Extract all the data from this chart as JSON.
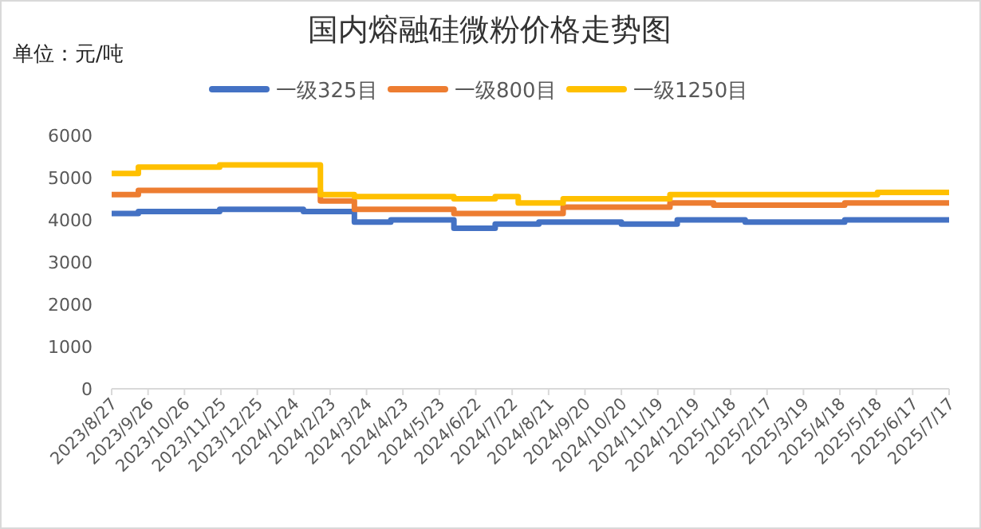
{
  "chart_data": {
    "type": "step",
    "title": "国内熔融硅微粉价格走势图",
    "annotations": [
      "单位：元/吨"
    ],
    "legend": "top",
    "xlim": [
      "2023-08-27",
      "2025-07-17"
    ],
    "xticks": [
      {
        "value": "2023-08-27",
        "label": "2023/8/27"
      },
      {
        "value": "2023-09-26",
        "label": "2023/9/26"
      },
      {
        "value": "2023-10-26",
        "label": "2023/10/26"
      },
      {
        "value": "2023-11-25",
        "label": "2023/11/25"
      },
      {
        "value": "2023-12-25",
        "label": "2023/12/25"
      },
      {
        "value": "2024-01-24",
        "label": "2024/1/24"
      },
      {
        "value": "2024-02-23",
        "label": "2024/2/23"
      },
      {
        "value": "2024-03-24",
        "label": "2024/3/24"
      },
      {
        "value": "2024-04-23",
        "label": "2024/4/23"
      },
      {
        "value": "2024-05-23",
        "label": "2024/5/23"
      },
      {
        "value": "2024-06-22",
        "label": "2024/6/22"
      },
      {
        "value": "2024-07-22",
        "label": "2024/7/22"
      },
      {
        "value": "2024-08-21",
        "label": "2024/8/21"
      },
      {
        "value": "2024-09-20",
        "label": "2024/9/20"
      },
      {
        "value": "2024-10-20",
        "label": "2024/10/20"
      },
      {
        "value": "2024-11-19",
        "label": "2024/11/19"
      },
      {
        "value": "2024-12-19",
        "label": "2024/12/19"
      },
      {
        "value": "2025-01-18",
        "label": "2025/1/18"
      },
      {
        "value": "2025-02-17",
        "label": "2025/2/17"
      },
      {
        "value": "2025-03-19",
        "label": "2025/3/19"
      },
      {
        "value": "2025-04-18",
        "label": "2025/4/18"
      },
      {
        "value": "2025-05-18",
        "label": "2025/5/18"
      },
      {
        "value": "2025-06-17",
        "label": "2025/6/17"
      },
      {
        "value": "2025-07-17",
        "label": "2025/7/17"
      }
    ],
    "ylim": [
      0,
      6000
    ],
    "yticks": [
      0,
      1000,
      2000,
      3000,
      4000,
      5000,
      6000
    ],
    "series": [
      {
        "name": "一级325目",
        "color": "#4472c4",
        "x": [
          "2023-08-27",
          "2023-09-18",
          "2023-11-24",
          "2024-02-01",
          "2024-03-14",
          "2024-04-13",
          "2024-06-04",
          "2024-07-08",
          "2024-08-13",
          "2024-10-20",
          "2024-12-05",
          "2025-01-30",
          "2025-04-22",
          "2025-07-17"
        ],
        "values": [
          4150,
          4200,
          4250,
          4200,
          3950,
          4000,
          3800,
          3900,
          3950,
          3900,
          4000,
          3950,
          4000,
          4000
        ]
      },
      {
        "name": "一级800目",
        "color": "#ed7d31",
        "x": [
          "2023-08-27",
          "2023-09-18",
          "2024-02-15",
          "2024-03-14",
          "2024-06-04",
          "2024-09-02",
          "2024-11-29",
          "2025-01-04",
          "2025-04-22",
          "2025-07-17"
        ],
        "values": [
          4600,
          4700,
          4450,
          4250,
          4150,
          4300,
          4400,
          4350,
          4400,
          4400
        ]
      },
      {
        "name": "一级1250目",
        "color": "#ffc000",
        "x": [
          "2023-08-27",
          "2023-09-18",
          "2023-11-24",
          "2024-02-15",
          "2024-03-14",
          "2024-06-04",
          "2024-07-08",
          "2024-07-27",
          "2024-09-02",
          "2024-11-29",
          "2025-05-19",
          "2025-07-17"
        ],
        "values": [
          5100,
          5250,
          5300,
          4600,
          4550,
          4500,
          4550,
          4400,
          4500,
          4600,
          4650,
          4650
        ]
      }
    ]
  }
}
